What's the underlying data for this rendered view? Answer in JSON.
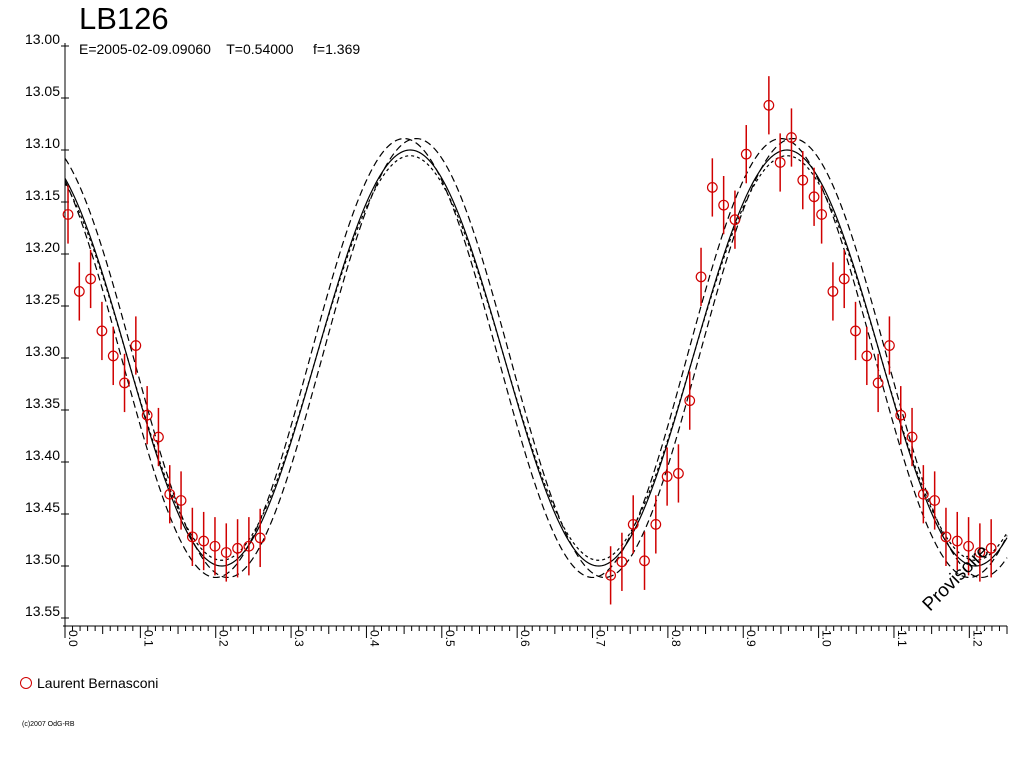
{
  "chart_data": {
    "type": "scatter",
    "title": "LB126",
    "subtitle": "E=2005-02-09.09060    T=0.54000     f=1.369",
    "xlim": [
      0.0,
      1.25
    ],
    "ylim": [
      13.0,
      13.55
    ],
    "y_inverted": true,
    "y_ticks": [
      "13.00",
      "13.05",
      "13.10",
      "13.15",
      "13.20",
      "13.25",
      "13.30",
      "13.35",
      "13.40",
      "13.45",
      "13.50",
      "13.55"
    ],
    "x_ticks": [
      "0.0",
      "0.1",
      "0.2",
      "0.3",
      "0.4",
      "0.5",
      "0.6",
      "0.7",
      "0.8",
      "0.9",
      "1.0",
      "1.1",
      "1.2"
    ],
    "x_tick_values": [
      0.0,
      0.1,
      0.2,
      0.3,
      0.4,
      0.5,
      0.6,
      0.7,
      0.8,
      0.9,
      1.0,
      1.1,
      1.2
    ],
    "y_tick_values": [
      13.0,
      13.05,
      13.1,
      13.15,
      13.2,
      13.25,
      13.3,
      13.35,
      13.4,
      13.45,
      13.5,
      13.55
    ],
    "grid": false,
    "legend_position": "bottom-left",
    "stamp": "Provisoire",
    "series": [
      {
        "name": "Laurent Bernasconi",
        "color": "#d00000",
        "marker": "open-circle",
        "points": [
          {
            "x": 0.004,
            "y": 13.162,
            "err": 0.028
          },
          {
            "x": 0.019,
            "y": 13.236,
            "err": 0.028
          },
          {
            "x": 0.034,
            "y": 13.224,
            "err": 0.028
          },
          {
            "x": 0.049,
            "y": 13.274,
            "err": 0.028
          },
          {
            "x": 0.064,
            "y": 13.298,
            "err": 0.028
          },
          {
            "x": 0.079,
            "y": 13.324,
            "err": 0.028
          },
          {
            "x": 0.094,
            "y": 13.288,
            "err": 0.028
          },
          {
            "x": 0.109,
            "y": 13.355,
            "err": 0.028
          },
          {
            "x": 0.124,
            "y": 13.376,
            "err": 0.028
          },
          {
            "x": 0.139,
            "y": 13.431,
            "err": 0.028
          },
          {
            "x": 0.154,
            "y": 13.437,
            "err": 0.028
          },
          {
            "x": 0.169,
            "y": 13.472,
            "err": 0.028
          },
          {
            "x": 0.184,
            "y": 13.476,
            "err": 0.028
          },
          {
            "x": 0.199,
            "y": 13.481,
            "err": 0.028
          },
          {
            "x": 0.214,
            "y": 13.487,
            "err": 0.028
          },
          {
            "x": 0.229,
            "y": 13.483,
            "err": 0.028
          },
          {
            "x": 0.244,
            "y": 13.481,
            "err": 0.028
          },
          {
            "x": 0.259,
            "y": 13.473,
            "err": 0.028
          },
          {
            "x": 0.724,
            "y": 13.509,
            "err": 0.028
          },
          {
            "x": 0.739,
            "y": 13.496,
            "err": 0.028
          },
          {
            "x": 0.754,
            "y": 13.46,
            "err": 0.028
          },
          {
            "x": 0.769,
            "y": 13.495,
            "err": 0.028
          },
          {
            "x": 0.784,
            "y": 13.46,
            "err": 0.028
          },
          {
            "x": 0.799,
            "y": 13.414,
            "err": 0.028
          },
          {
            "x": 0.814,
            "y": 13.411,
            "err": 0.028
          },
          {
            "x": 0.829,
            "y": 13.341,
            "err": 0.028
          },
          {
            "x": 0.844,
            "y": 13.222,
            "err": 0.028
          },
          {
            "x": 0.859,
            "y": 13.136,
            "err": 0.028
          },
          {
            "x": 0.874,
            "y": 13.153,
            "err": 0.028
          },
          {
            "x": 0.889,
            "y": 13.167,
            "err": 0.028
          },
          {
            "x": 0.904,
            "y": 13.104,
            "err": 0.028
          },
          {
            "x": 0.934,
            "y": 13.057,
            "err": 0.028
          },
          {
            "x": 0.949,
            "y": 13.112,
            "err": 0.028
          },
          {
            "x": 0.964,
            "y": 13.088,
            "err": 0.028
          },
          {
            "x": 0.979,
            "y": 13.129,
            "err": 0.028
          },
          {
            "x": 0.994,
            "y": 13.145,
            "err": 0.028
          },
          {
            "x": 1.004,
            "y": 13.162,
            "err": 0.028
          },
          {
            "x": 1.019,
            "y": 13.236,
            "err": 0.028
          },
          {
            "x": 1.034,
            "y": 13.224,
            "err": 0.028
          },
          {
            "x": 1.049,
            "y": 13.274,
            "err": 0.028
          },
          {
            "x": 1.064,
            "y": 13.298,
            "err": 0.028
          },
          {
            "x": 1.079,
            "y": 13.324,
            "err": 0.028
          },
          {
            "x": 1.094,
            "y": 13.288,
            "err": 0.028
          },
          {
            "x": 1.109,
            "y": 13.355,
            "err": 0.028
          },
          {
            "x": 1.124,
            "y": 13.376,
            "err": 0.028
          },
          {
            "x": 1.139,
            "y": 13.431,
            "err": 0.028
          },
          {
            "x": 1.154,
            "y": 13.437,
            "err": 0.028
          },
          {
            "x": 1.169,
            "y": 13.472,
            "err": 0.028
          },
          {
            "x": 1.184,
            "y": 13.476,
            "err": 0.028
          },
          {
            "x": 1.199,
            "y": 13.481,
            "err": 0.028
          },
          {
            "x": 1.214,
            "y": 13.487,
            "err": 0.028
          },
          {
            "x": 1.229,
            "y": 13.483,
            "err": 0.028
          }
        ]
      }
    ],
    "model_curve": {
      "mean": 13.3,
      "amplitude": 0.2,
      "period": 0.5,
      "phase_of_max_brightness": 0.458,
      "envelope_offset": 0.011,
      "envelope_phase_offset": 0.008
    }
  },
  "legend": {
    "label": "Laurent Bernasconi"
  },
  "copyright": "(c)2007 OdG-RB"
}
